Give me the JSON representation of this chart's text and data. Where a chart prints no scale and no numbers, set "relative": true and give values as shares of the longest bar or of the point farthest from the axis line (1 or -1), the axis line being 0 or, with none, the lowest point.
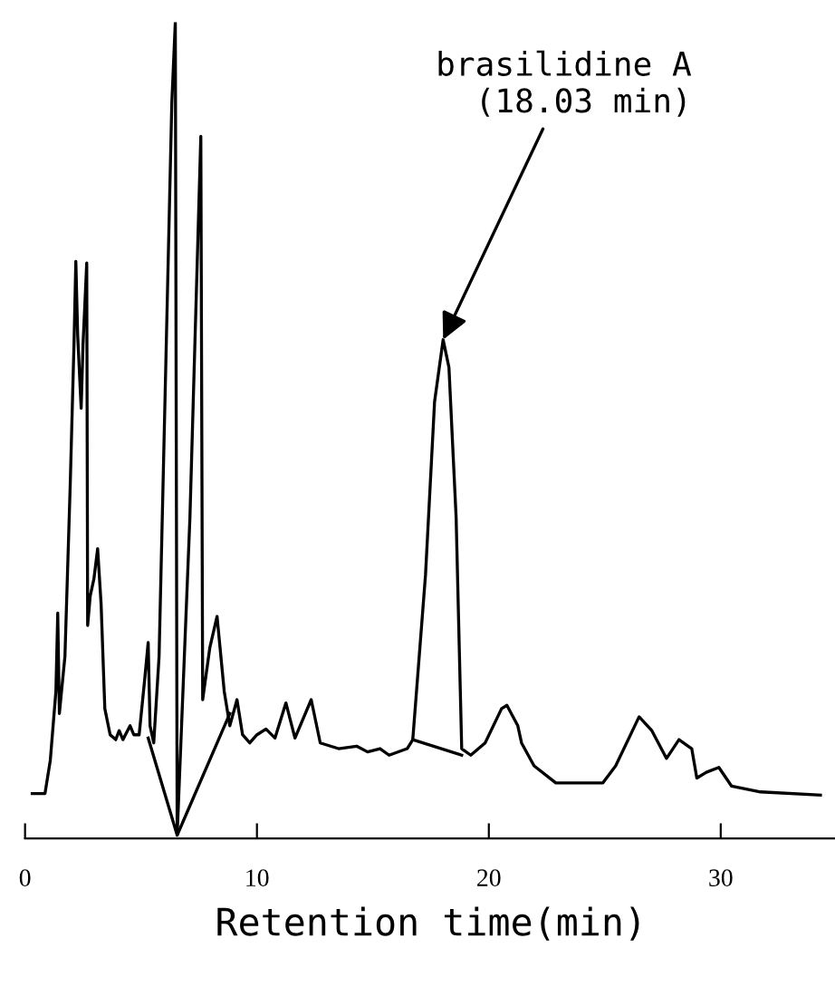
{
  "chart_data": {
    "type": "line",
    "relative": true,
    "xlabel": "Retention time(min)",
    "xlim": [
      0,
      35
    ],
    "xticks": [
      0,
      10,
      20,
      30
    ],
    "grid": false,
    "legend": false,
    "marker": "none",
    "line_style": "solid",
    "tick_labels": "x",
    "annotations": [
      {
        "text": "brasilidine A\n(18.03 min)",
        "x": 18.03,
        "y": 0.611
      }
    ],
    "series": [
      {
        "color": "#000000",
        "x": [
          0.31,
          0.86,
          1.09,
          1.33,
          1.41,
          1.48,
          1.72,
          1.95,
          2.11,
          2.19,
          2.27,
          2.42,
          2.5,
          2.66,
          2.7,
          2.81,
          2.97,
          3.13,
          3.28,
          3.44,
          3.67,
          3.91,
          4.06,
          4.22,
          4.53,
          4.69,
          4.92,
          5.16,
          5.31,
          5.39,
          5.55,
          5.78,
          6.09,
          6.33,
          6.48,
          6.56,
          7.11,
          7.58,
          7.66,
          7.97,
          8.28,
          8.59,
          8.83,
          9.14,
          9.38,
          9.69,
          10.0,
          10.39,
          10.78,
          11.25,
          11.64,
          12.34,
          12.73,
          13.52,
          14.3,
          14.77,
          15.31,
          15.7,
          16.48,
          16.72,
          17.27,
          17.66,
          18.03,
          18.28,
          18.59,
          18.83,
          19.22,
          19.84,
          20.55,
          20.78,
          21.25,
          21.41,
          21.95,
          22.89,
          24.92,
          25.47,
          26.48,
          27.03,
          27.66,
          28.2,
          28.75,
          28.97,
          29.38,
          29.92,
          30.47,
          31.72,
          34.3
        ],
        "values": [
          0.055,
          0.055,
          0.096,
          0.18,
          0.276,
          0.153,
          0.223,
          0.435,
          0.605,
          0.707,
          0.616,
          0.527,
          0.605,
          0.705,
          0.261,
          0.297,
          0.318,
          0.355,
          0.287,
          0.159,
          0.127,
          0.121,
          0.132,
          0.121,
          0.138,
          0.127,
          0.127,
          0.195,
          0.24,
          0.138,
          0.117,
          0.223,
          0.605,
          0.902,
          1.0,
          0.004,
          0.393,
          0.86,
          0.17,
          0.234,
          0.272,
          0.18,
          0.138,
          0.17,
          0.127,
          0.117,
          0.127,
          0.134,
          0.123,
          0.166,
          0.123,
          0.17,
          0.117,
          0.11,
          0.113,
          0.106,
          0.11,
          0.102,
          0.11,
          0.121,
          0.323,
          0.535,
          0.611,
          0.577,
          0.393,
          0.11,
          0.102,
          0.117,
          0.159,
          0.163,
          0.138,
          0.117,
          0.089,
          0.068,
          0.068,
          0.089,
          0.149,
          0.132,
          0.098,
          0.121,
          0.11,
          0.074,
          0.081,
          0.087,
          0.064,
          0.057,
          0.053
        ]
      },
      {
        "color": "#000000",
        "x": [
          5.31,
          6.56,
          8.83,
          12.0,
          16.72,
          18.83
        ],
        "values": [
          0.123,
          0.004,
          0.153,
          null,
          0.121,
          0.102
        ]
      }
    ]
  }
}
